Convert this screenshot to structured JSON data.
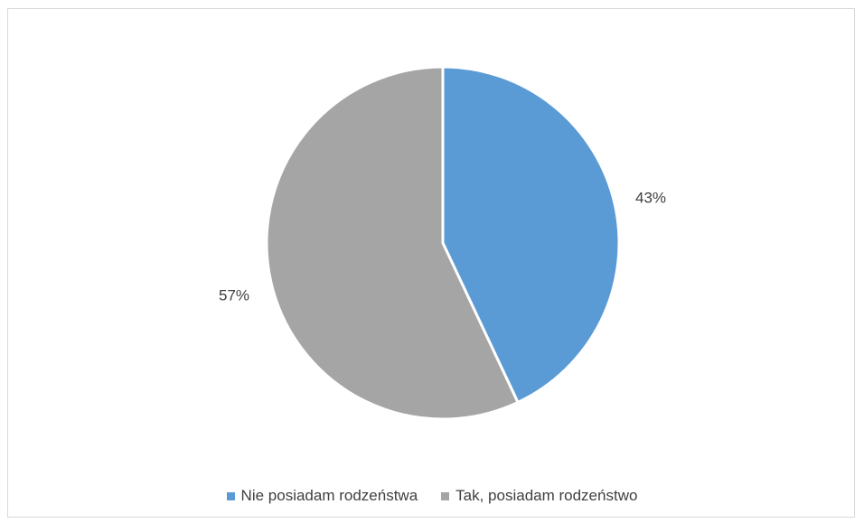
{
  "chart_data": {
    "type": "pie",
    "categories": [
      "Nie posiadam rodzeństwa",
      "Tak, posiadam rodzeństwo"
    ],
    "values": [
      43,
      57
    ],
    "data_labels": [
      "43%",
      "57%"
    ],
    "colors": [
      "#5b9bd5",
      "#a5a5a5"
    ],
    "legend_position": "bottom",
    "title": ""
  }
}
